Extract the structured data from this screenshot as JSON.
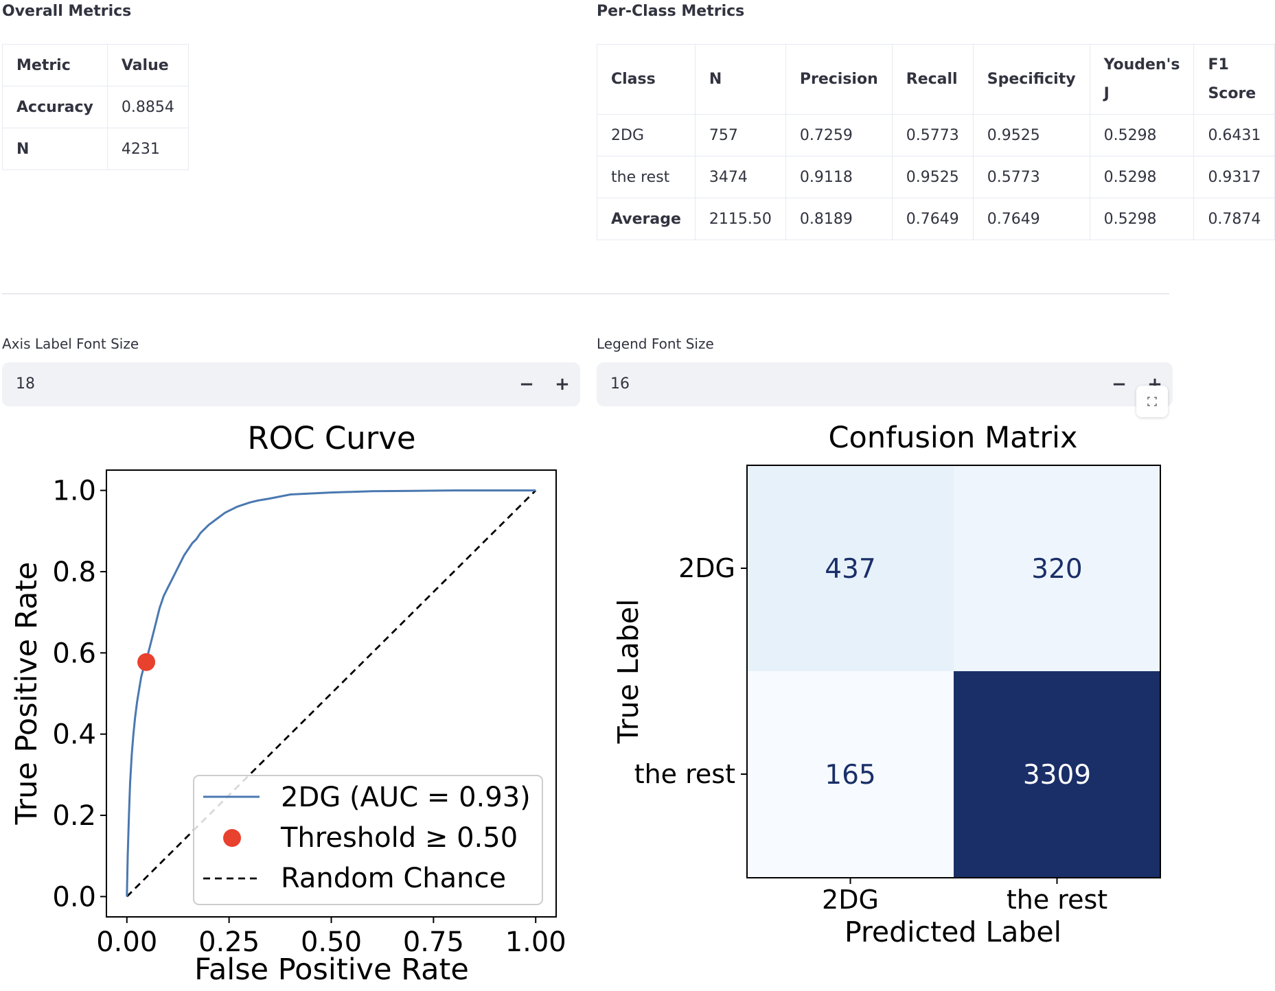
{
  "overall": {
    "title": "Overall Metrics",
    "columns": [
      "Metric",
      "Value"
    ],
    "rows": [
      [
        "Accuracy",
        "0.8854"
      ],
      [
        "N",
        "4231"
      ]
    ]
  },
  "per_class": {
    "title": "Per-Class Metrics",
    "columns": [
      "Class",
      "N",
      "Precision",
      "Recall",
      "Specificity",
      "Youden's J",
      "F1 Score"
    ],
    "rows": [
      [
        "2DG",
        "757",
        "0.7259",
        "0.5773",
        "0.9525",
        "0.5298",
        "0.6431"
      ],
      [
        "the rest",
        "3474",
        "0.9118",
        "0.9525",
        "0.5773",
        "0.5298",
        "0.9317"
      ],
      [
        "Average",
        "2115.50",
        "0.8189",
        "0.7649",
        "0.7649",
        "0.5298",
        "0.7874"
      ]
    ]
  },
  "controls": {
    "axis_font": {
      "label": "Axis Label Font Size",
      "value": "18"
    },
    "legend_font": {
      "label": "Legend Font Size",
      "value": "16"
    },
    "minus": "−",
    "plus": "+"
  },
  "chart_data": [
    {
      "type": "line",
      "title": "ROC Curve",
      "xlabel": "False Positive Rate",
      "ylabel": "True Positive Rate",
      "xlim": [
        -0.05,
        1.05
      ],
      "ylim": [
        -0.05,
        1.05
      ],
      "xticks": [
        "0.00",
        "0.25",
        "0.50",
        "0.75",
        "1.00"
      ],
      "yticks": [
        "0.0",
        "0.2",
        "0.4",
        "0.6",
        "0.8",
        "1.0"
      ],
      "series": [
        {
          "name": "2DG (AUC = 0.93)",
          "color": "#4a78b0",
          "x": [
            0.0,
            0.002,
            0.005,
            0.008,
            0.012,
            0.016,
            0.02,
            0.025,
            0.03,
            0.035,
            0.04,
            0.045,
            0.05,
            0.055,
            0.06,
            0.065,
            0.07,
            0.075,
            0.08,
            0.09,
            0.1,
            0.11,
            0.12,
            0.13,
            0.14,
            0.15,
            0.16,
            0.17,
            0.18,
            0.2,
            0.22,
            0.24,
            0.25,
            0.27,
            0.3,
            0.32,
            0.35,
            0.4,
            0.5,
            0.6,
            0.7,
            0.8,
            0.9,
            1.0
          ],
          "y": [
            0.0,
            0.1,
            0.2,
            0.28,
            0.35,
            0.4,
            0.44,
            0.48,
            0.51,
            0.54,
            0.56,
            0.575,
            0.59,
            0.61,
            0.63,
            0.65,
            0.67,
            0.69,
            0.71,
            0.74,
            0.76,
            0.78,
            0.8,
            0.82,
            0.84,
            0.855,
            0.87,
            0.88,
            0.895,
            0.915,
            0.93,
            0.945,
            0.95,
            0.96,
            0.97,
            0.975,
            0.98,
            0.99,
            0.995,
            0.998,
            0.999,
            1.0,
            1.0,
            1.0
          ]
        },
        {
          "name": "Random Chance",
          "color": "#000000",
          "x": [
            0,
            1
          ],
          "y": [
            0,
            1
          ]
        }
      ],
      "points": [
        {
          "name": "Threshold ≥ 0.50",
          "color": "#e8412e",
          "x": 0.0475,
          "y": 0.5773
        }
      ],
      "legend_position": "lower-right"
    },
    {
      "type": "heatmap",
      "title": "Confusion Matrix",
      "xlabel": "Predicted Label",
      "ylabel": "True Label",
      "x_categories": [
        "2DG",
        "the rest"
      ],
      "y_categories": [
        "2DG",
        "the rest"
      ],
      "values": [
        [
          437,
          320
        ],
        [
          165,
          3309
        ]
      ],
      "colormap": "Blues"
    }
  ]
}
